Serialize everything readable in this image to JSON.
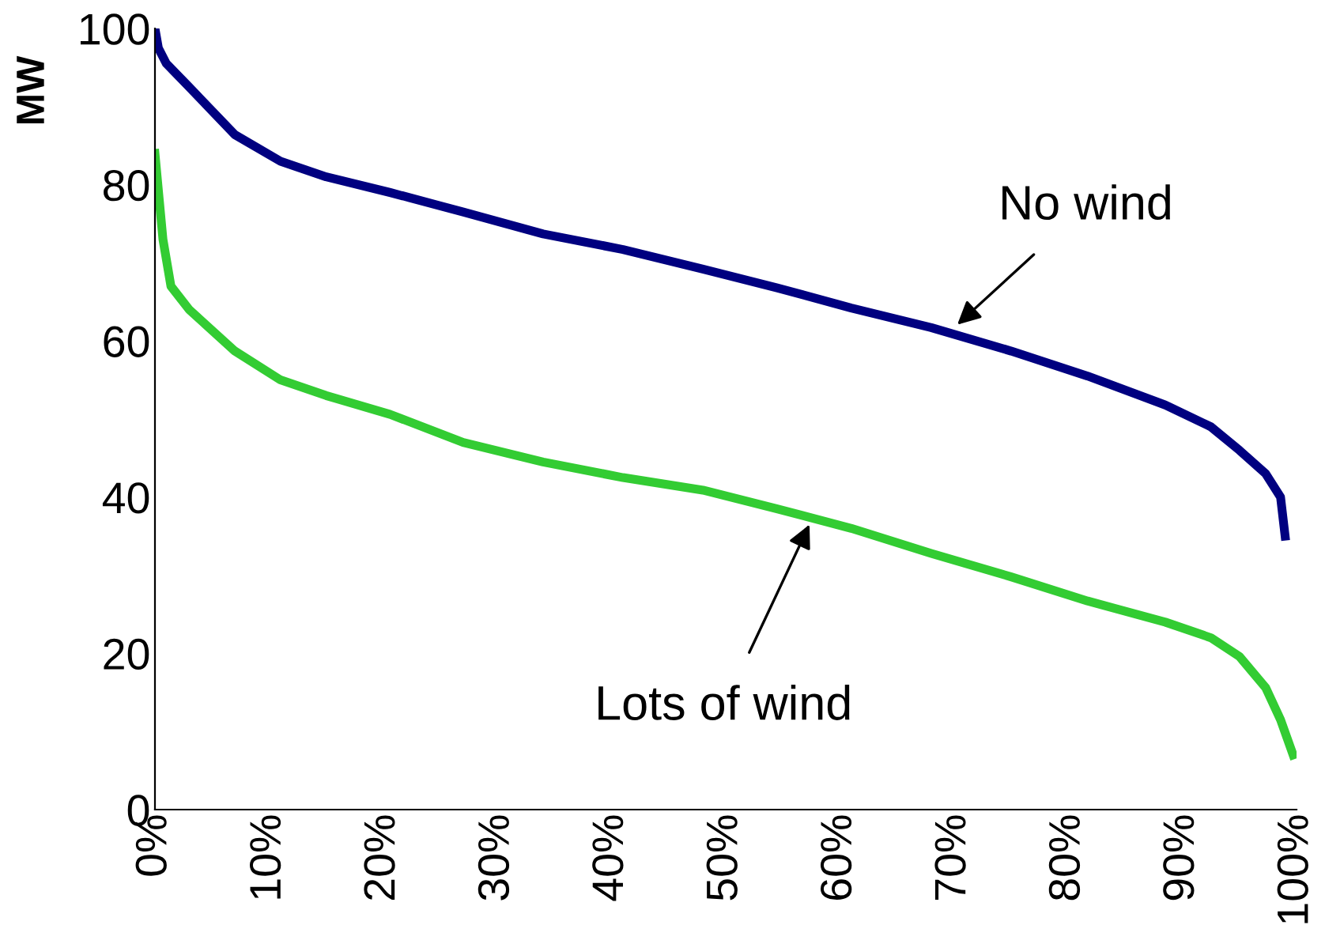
{
  "chart_data": {
    "type": "line",
    "ylabel": "MW",
    "xlim": [
      0,
      100
    ],
    "ylim": [
      0,
      100
    ],
    "xticks": [
      {
        "value": 0,
        "label": "0%"
      },
      {
        "value": 10,
        "label": "10%"
      },
      {
        "value": 20,
        "label": "20%"
      },
      {
        "value": 30,
        "label": "30%"
      },
      {
        "value": 40,
        "label": "40%"
      },
      {
        "value": 50,
        "label": "50%"
      },
      {
        "value": 60,
        "label": "60%"
      },
      {
        "value": 70,
        "label": "70%"
      },
      {
        "value": 80,
        "label": "80%"
      },
      {
        "value": 90,
        "label": "90%"
      },
      {
        "value": 100,
        "label": "100%"
      }
    ],
    "yticks": [
      0,
      20,
      40,
      60,
      80,
      100
    ],
    "grid": false,
    "legend": false,
    "marker": "none",
    "line_style": "solid",
    "series": [
      {
        "color": "#000080",
        "x": [
          0,
          0.3,
          1,
          3,
          7,
          11,
          15,
          20.6,
          27,
          34,
          41,
          48,
          54.5,
          61,
          68,
          75,
          81.7,
          88.5,
          92.5,
          95,
          97.3,
          98.6,
          99
        ],
        "values": [
          100,
          97.5,
          95.5,
          92.5,
          86.4,
          83,
          81,
          79,
          76.5,
          73.7,
          71.7,
          69.2,
          66.8,
          64.2,
          61.7,
          58.7,
          55.5,
          51.8,
          49,
          46,
          43,
          40,
          35
        ]
      },
      {
        "color": "#33cc33",
        "x": [
          0,
          0.7,
          1.4,
          3,
          7,
          11,
          15,
          20.6,
          27,
          34,
          41,
          48,
          54.5,
          61,
          68,
          75,
          81.7,
          88.5,
          92.5,
          95,
          97.3,
          98.6,
          99.7
        ],
        "values": [
          84,
          73,
          67,
          64,
          58.7,
          55,
          53,
          50.6,
          47,
          44.5,
          42.5,
          40.9,
          38.5,
          36,
          32.8,
          29.8,
          26.7,
          24,
          22,
          19.6,
          15.6,
          11.5,
          7
        ]
      }
    ],
    "annotations": [
      {
        "text": "No wind",
        "x": 70,
        "y": 61.7
      },
      {
        "text": "Lots of wind",
        "x": 57.5,
        "y": 37
      }
    ]
  }
}
